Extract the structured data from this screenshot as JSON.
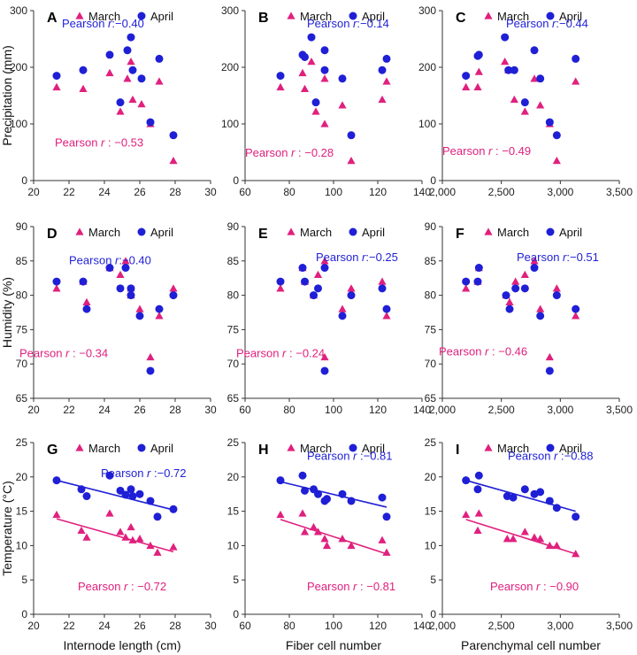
{
  "colors": {
    "march": "#e0207e",
    "april": "#1f1fd6",
    "axis": "#333333"
  },
  "chart_data": [
    {
      "id": "A",
      "type": "scatter",
      "xlim": [
        20,
        30
      ],
      "xticks": [
        "20",
        "22",
        "24",
        "26",
        "28",
        "30"
      ],
      "ylim": [
        0,
        300
      ],
      "yticks": [
        "0",
        "100",
        "200",
        "300"
      ],
      "xlabel": "",
      "ylabel": "Precipitation (mm)",
      "legend": [
        "March",
        "April"
      ],
      "fit_lines": false,
      "series": [
        {
          "name": "March",
          "x": [
            21.3,
            22.8,
            24.3,
            24.9,
            25.3,
            25.5,
            25.6,
            26.1,
            26.6,
            27.1,
            27.9
          ],
          "y": [
            165,
            162,
            190,
            122,
            180,
            210,
            143,
            135,
            100,
            175,
            35
          ]
        },
        {
          "name": "April",
          "x": [
            21.3,
            22.8,
            24.3,
            24.9,
            25.3,
            25.5,
            25.6,
            26.1,
            26.6,
            27.1,
            27.9
          ],
          "y": [
            185,
            195,
            222,
            138,
            230,
            253,
            195,
            180,
            103,
            215,
            80
          ]
        }
      ],
      "annotations": [
        {
          "series": "April",
          "prefix": "Pearson ",
          "r": "r",
          "value": ":−0.40"
        },
        {
          "series": "March",
          "prefix": "Pearson ",
          "r": "r",
          "value": " : −0.53"
        }
      ]
    },
    {
      "id": "B",
      "type": "scatter",
      "xlim": [
        60,
        140
      ],
      "xticks": [
        "60",
        "80",
        "100",
        "120",
        "140"
      ],
      "ylim": [
        0,
        300
      ],
      "yticks": [
        "0",
        "100",
        "200",
        "300"
      ],
      "xlabel": "",
      "ylabel": "",
      "legend": [
        "March",
        "April"
      ],
      "fit_lines": false,
      "series": [
        {
          "name": "March",
          "x": [
            76,
            86,
            87,
            90,
            92,
            96,
            96,
            104,
            108,
            122,
            124
          ],
          "y": [
            165,
            190,
            162,
            210,
            122,
            180,
            100,
            133,
            35,
            143,
            175
          ]
        },
        {
          "name": "April",
          "x": [
            76,
            86,
            87,
            90,
            92,
            96,
            96,
            104,
            108,
            122,
            124
          ],
          "y": [
            185,
            222,
            218,
            253,
            138,
            195,
            230,
            180,
            80,
            195,
            215
          ]
        }
      ],
      "annotations": [
        {
          "series": "April",
          "prefix": "Pearson ",
          "r": "r",
          "value": ":−0.14"
        },
        {
          "series": "March",
          "prefix": "Pearson ",
          "r": "r",
          "value": " : −0.28"
        }
      ]
    },
    {
      "id": "C",
      "type": "scatter",
      "xlim": [
        2000,
        3500
      ],
      "xticks": [
        "2,000",
        "2,500",
        "3,000",
        "3,500"
      ],
      "ylim": [
        0,
        300
      ],
      "yticks": [
        "0",
        "100",
        "200",
        "300"
      ],
      "xlabel": "",
      "ylabel": "",
      "legend": [
        "March",
        "April"
      ],
      "fit_lines": false,
      "series": [
        {
          "name": "March",
          "x": [
            2200,
            2300,
            2310,
            2530,
            2560,
            2610,
            2700,
            2780,
            2830,
            2910,
            2970,
            3130
          ],
          "y": [
            165,
            165,
            192,
            210,
            195,
            143,
            122,
            180,
            133,
            100,
            35,
            175
          ]
        },
        {
          "name": "April",
          "x": [
            2200,
            2300,
            2310,
            2530,
            2560,
            2610,
            2700,
            2780,
            2830,
            2910,
            2970,
            3130
          ],
          "y": [
            185,
            220,
            222,
            253,
            195,
            195,
            138,
            230,
            180,
            103,
            80,
            215
          ]
        }
      ],
      "annotations": [
        {
          "series": "April",
          "prefix": "Pearson ",
          "r": "r",
          "value": ":−0.44"
        },
        {
          "series": "March",
          "prefix": "Pearson ",
          "r": "r",
          "value": " : −0.49"
        }
      ]
    },
    {
      "id": "D",
      "type": "scatter",
      "xlim": [
        20,
        30
      ],
      "xticks": [
        "20",
        "22",
        "24",
        "26",
        "28",
        "30"
      ],
      "ylim": [
        65,
        90
      ],
      "yticks": [
        "65",
        "70",
        "75",
        "80",
        "85",
        "90"
      ],
      "xlabel": "",
      "ylabel": "Humidity (%)",
      "legend": [
        "March",
        "April"
      ],
      "fit_lines": false,
      "series": [
        {
          "name": "March",
          "x": [
            21.3,
            22.8,
            23,
            24.3,
            24.9,
            25.2,
            25.5,
            25.5,
            26,
            26.6,
            27.1,
            27.9
          ],
          "y": [
            81,
            82,
            79,
            84,
            83,
            85,
            80,
            81,
            78,
            71,
            77,
            81
          ]
        },
        {
          "name": "April",
          "x": [
            21.3,
            22.8,
            23,
            24.3,
            24.9,
            25.2,
            25.5,
            25.5,
            26,
            26.6,
            27.1,
            27.9
          ],
          "y": [
            82,
            82,
            78,
            84,
            81,
            84,
            81,
            80,
            77,
            69,
            78,
            80
          ]
        }
      ],
      "annotations": [
        {
          "series": "April",
          "prefix": "Pearson ",
          "r": "r",
          "value": ":−0.40"
        },
        {
          "series": "March",
          "prefix": "Pearson ",
          "r": "r",
          "value": " : −0.34"
        }
      ]
    },
    {
      "id": "E",
      "type": "scatter",
      "xlim": [
        60,
        140
      ],
      "xticks": [
        "60",
        "80",
        "100",
        "120",
        "140"
      ],
      "ylim": [
        65,
        90
      ],
      "yticks": [
        "65",
        "70",
        "75",
        "80",
        "85",
        "90"
      ],
      "xlabel": "",
      "ylabel": "",
      "legend": [
        "March",
        "April"
      ],
      "fit_lines": false,
      "series": [
        {
          "name": "March",
          "x": [
            76,
            86,
            87,
            91,
            93,
            96,
            96,
            104,
            108,
            122,
            124
          ],
          "y": [
            81,
            84,
            82,
            80,
            83,
            85,
            71,
            78,
            81,
            82,
            77
          ]
        },
        {
          "name": "April",
          "x": [
            76,
            86,
            87,
            91,
            93,
            96,
            96,
            104,
            108,
            122,
            124
          ],
          "y": [
            82,
            84,
            82,
            80,
            81,
            84,
            69,
            77,
            80,
            81,
            78
          ]
        }
      ],
      "annotations": [
        {
          "series": "April",
          "prefix": "Pearson ",
          "r": "r",
          "value": ":−0.25"
        },
        {
          "series": "March",
          "prefix": "Pearson ",
          "r": "r",
          "value": " : −0.24"
        }
      ]
    },
    {
      "id": "F",
      "type": "scatter",
      "xlim": [
        2000,
        3500
      ],
      "xticks": [
        "2,000",
        "2,500",
        "3,000",
        "3,500"
      ],
      "ylim": [
        65,
        90
      ],
      "yticks": [
        "65",
        "70",
        "75",
        "80",
        "85",
        "90"
      ],
      "xlabel": "",
      "ylabel": "",
      "legend": [
        "March",
        "April"
      ],
      "fit_lines": false,
      "series": [
        {
          "name": "March",
          "x": [
            2200,
            2300,
            2310,
            2540,
            2570,
            2620,
            2700,
            2780,
            2830,
            2910,
            2970,
            3130
          ],
          "y": [
            81,
            82,
            84,
            80,
            79,
            82,
            83,
            85,
            78,
            71,
            81,
            77
          ]
        },
        {
          "name": "April",
          "x": [
            2200,
            2300,
            2310,
            2540,
            2570,
            2620,
            2700,
            2780,
            2830,
            2910,
            2970,
            3130
          ],
          "y": [
            82,
            82,
            84,
            80,
            78,
            81,
            81,
            84,
            77,
            69,
            80,
            78
          ]
        }
      ],
      "annotations": [
        {
          "series": "April",
          "prefix": "Pearson ",
          "r": "r",
          "value": ":−0.51"
        },
        {
          "series": "March",
          "prefix": "Pearson ",
          "r": "r",
          "value": " : −0.46"
        }
      ]
    },
    {
      "id": "G",
      "type": "scatter",
      "xlim": [
        20,
        30
      ],
      "xticks": [
        "20",
        "22",
        "24",
        "26",
        "28",
        "30"
      ],
      "ylim": [
        0,
        25
      ],
      "yticks": [
        "0",
        "5",
        "10",
        "15",
        "20",
        "25"
      ],
      "xlabel": "Internode length (cm)",
      "ylabel": "Temperature (°C)",
      "legend": [
        "March",
        "April"
      ],
      "fit_lines": true,
      "series": [
        {
          "name": "March",
          "x": [
            21.3,
            22.7,
            23,
            24.3,
            24.9,
            25.2,
            25.5,
            25.6,
            26,
            26.6,
            27,
            27.9
          ],
          "y": [
            14.5,
            12.2,
            11.2,
            14.7,
            12,
            11.2,
            12.7,
            10.8,
            11,
            10,
            9,
            9.8
          ],
          "fit": [
            [
              21.3,
              13.9
            ],
            [
              27.9,
              9.1
            ]
          ]
        },
        {
          "name": "April",
          "x": [
            21.3,
            22.7,
            23,
            24.3,
            24.9,
            25.2,
            25.5,
            25.6,
            26,
            26.6,
            27,
            27.9
          ],
          "y": [
            19.5,
            18.2,
            17.2,
            20.2,
            18,
            17.4,
            18.2,
            17.2,
            17.5,
            16.5,
            14.2,
            15.3
          ],
          "fit": [
            [
              21.3,
              19.5
            ],
            [
              27.9,
              15.2
            ]
          ]
        }
      ],
      "annotations": [
        {
          "series": "April",
          "prefix": "Pearson ",
          "r": "r",
          "value": " :−0.72"
        },
        {
          "series": "March",
          "prefix": "Pearson ",
          "r": "r",
          "value": " : −0.72"
        }
      ]
    },
    {
      "id": "H",
      "type": "scatter",
      "xlim": [
        60,
        140
      ],
      "xticks": [
        "60",
        "80",
        "100",
        "120",
        "140"
      ],
      "ylim": [
        0,
        25
      ],
      "yticks": [
        "0",
        "5",
        "10",
        "15",
        "20",
        "25"
      ],
      "xlabel": "Fiber cell number",
      "ylabel": "",
      "legend": [
        "March",
        "April"
      ],
      "fit_lines": true,
      "series": [
        {
          "name": "March",
          "x": [
            76,
            86,
            87,
            91,
            93,
            96,
            97,
            104,
            108,
            122,
            124
          ],
          "y": [
            14.5,
            14.7,
            12,
            12.7,
            12,
            11,
            10,
            11,
            10,
            10.8,
            9
          ],
          "fit": [
            [
              76,
              13.8
            ],
            [
              124,
              8.8
            ]
          ]
        },
        {
          "name": "April",
          "x": [
            76,
            86,
            87,
            91,
            93,
            96,
            97,
            104,
            108,
            122,
            124
          ],
          "y": [
            19.5,
            20.2,
            18,
            18.2,
            17.5,
            16.5,
            16.8,
            17.5,
            16.5,
            17,
            14.2
          ],
          "fit": [
            [
              76,
              19.3
            ],
            [
              124,
              15.6
            ]
          ]
        }
      ],
      "annotations": [
        {
          "series": "April",
          "prefix": "Pearson ",
          "r": "r",
          "value": " :−0.81"
        },
        {
          "series": "March",
          "prefix": "Pearson ",
          "r": "r",
          "value": " : −0.81"
        }
      ]
    },
    {
      "id": "I",
      "type": "scatter",
      "xlim": [
        2000,
        3500
      ],
      "xticks": [
        "2,000",
        "2,500",
        "3,000",
        "3,500"
      ],
      "ylim": [
        0,
        25
      ],
      "yticks": [
        "0",
        "5",
        "10",
        "15",
        "20",
        "25"
      ],
      "xlabel": "Parenchymal cell number",
      "ylabel": "",
      "legend": [
        "March",
        "April"
      ],
      "fit_lines": true,
      "series": [
        {
          "name": "March",
          "x": [
            2200,
            2300,
            2310,
            2550,
            2600,
            2700,
            2780,
            2830,
            2910,
            2970,
            3130
          ],
          "y": [
            14.5,
            12.2,
            14.7,
            11,
            11,
            12,
            11.2,
            11,
            10,
            10,
            8.8
          ],
          "fit": [
            [
              2200,
              13.8
            ],
            [
              3130,
              8.8
            ]
          ]
        },
        {
          "name": "April",
          "x": [
            2200,
            2300,
            2310,
            2550,
            2600,
            2700,
            2780,
            2830,
            2910,
            2970,
            3130
          ],
          "y": [
            19.5,
            18.2,
            20.2,
            17.2,
            17,
            18.2,
            17.5,
            17.8,
            16.5,
            15.5,
            14.2
          ],
          "fit": [
            [
              2200,
              19.5
            ],
            [
              3130,
              15
            ]
          ]
        }
      ],
      "annotations": [
        {
          "series": "April",
          "prefix": "Pearson ",
          "r": "r",
          "value": " :−0.88"
        },
        {
          "series": "March",
          "prefix": "Pearson ",
          "r": "r",
          "value": " : −0.90"
        }
      ]
    }
  ]
}
